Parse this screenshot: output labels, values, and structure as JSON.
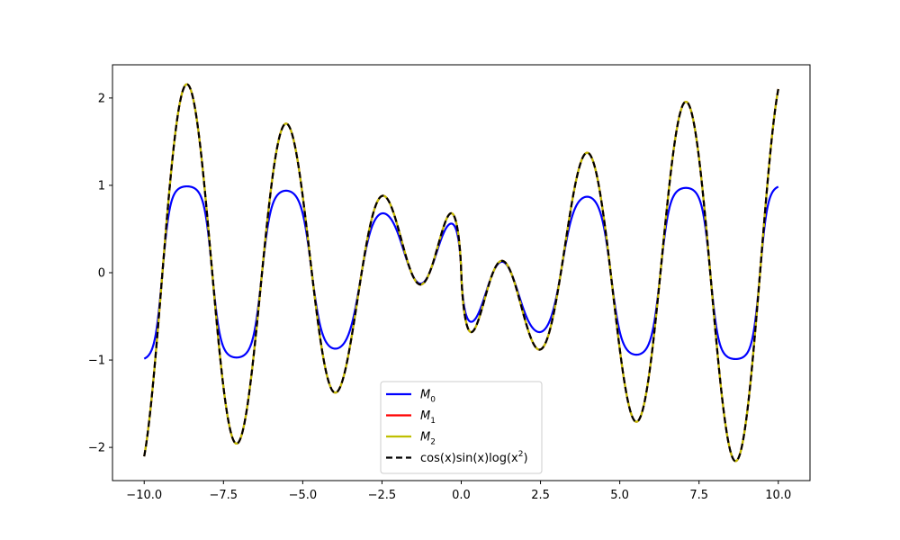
{
  "chart_data": {
    "type": "line",
    "title": "",
    "xlabel": "",
    "ylabel": "",
    "xlim": [
      -11.0,
      11.0
    ],
    "ylim": [
      -2.38,
      2.38
    ],
    "x_ticks": [
      -10.0,
      -7.5,
      -5.0,
      -2.5,
      0.0,
      2.5,
      5.0,
      7.5,
      10.0
    ],
    "x_tick_labels": [
      "−10.0",
      "−7.5",
      "−5.0",
      "−2.5",
      "0.0",
      "2.5",
      "5.0",
      "7.5",
      "10.0"
    ],
    "y_ticks": [
      -2,
      -1,
      0,
      1,
      2
    ],
    "y_tick_labels": [
      "−2",
      "−1",
      "0",
      "1",
      "2"
    ],
    "grid": false,
    "legend_position": "lower-center",
    "x_domain": [
      -10,
      10
    ],
    "series": [
      {
        "name": "M",
        "subscript": "0",
        "color": "#0000ff",
        "dash": "solid",
        "function": "M0"
      },
      {
        "name": "M",
        "subscript": "1",
        "color": "#ff0000",
        "dash": "solid",
        "function": "target"
      },
      {
        "name": "M",
        "subscript": "2",
        "color": "#bfbf00",
        "dash": "solid",
        "function": "target"
      },
      {
        "name": "cos(x)sin(x)log(x²)",
        "subscript": "",
        "color": "#000000",
        "dash": "dashed",
        "function": "target"
      }
    ],
    "legend_labels": [
      {
        "main": "M",
        "sub": "0"
      },
      {
        "main": "M",
        "sub": "1"
      },
      {
        "main": "M",
        "sub": "2"
      },
      {
        "main": "cos(x)sin(x)log(x",
        "sup": "2",
        "tail": ")"
      }
    ]
  }
}
